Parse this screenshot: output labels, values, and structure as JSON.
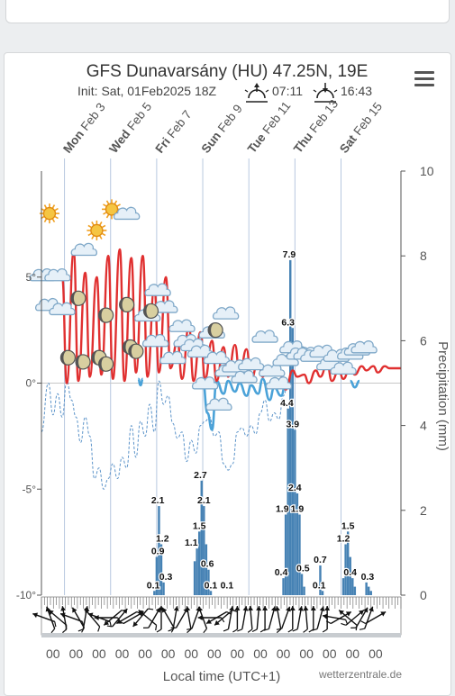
{
  "chart_data": {
    "type": "line+bar",
    "title": "GFS Dunavarsány (HU) 47.25N, 19E",
    "init": "Init: Sat, 01Feb2025 18Z",
    "sunrise": "07:11",
    "sunset": "16:43",
    "left_axis": {
      "ticks": [
        "5°",
        "0°",
        "-5°",
        "-10°"
      ],
      "values": [
        5,
        0,
        -5,
        -10
      ],
      "ylim": [
        -10,
        10
      ]
    },
    "right_axis": {
      "label": "Precipitation (mm)",
      "ticks": [
        "10",
        "8",
        "6",
        "4",
        "2",
        "0"
      ],
      "values": [
        10,
        8,
        6,
        4,
        2,
        0
      ],
      "ylim": [
        0,
        10
      ]
    },
    "day_labels": [
      {
        "day": "Mon",
        "date": "Feb 3",
        "x": 2.5
      },
      {
        "day": "Wed",
        "date": "Feb 5",
        "x": 4.5
      },
      {
        "day": "Fri",
        "date": "Feb 7",
        "x": 6.5
      },
      {
        "day": "Sun",
        "date": "Feb 9",
        "x": 8.5
      },
      {
        "day": "Tue",
        "date": "Feb 11",
        "x": 10.5
      },
      {
        "day": "Thu",
        "date": "Feb 13",
        "x": 12.5
      },
      {
        "day": "Sat",
        "date": "Feb 15",
        "x": 14.5
      }
    ],
    "x_range": [
      1.5,
      17.1
    ],
    "hour_label": "00",
    "hour_positions": [
      2,
      3,
      4,
      5,
      6,
      7,
      8,
      9,
      10,
      11,
      12,
      13,
      14,
      15,
      16
    ],
    "xlabel": "Local time (UTC+1)",
    "credit": "wetterzentrale.de",
    "series": [
      {
        "kind": "temperature_max_line",
        "color": "#e03030",
        "x": [
          1.5,
          1.9,
          2.1,
          2.4,
          2.6,
          2.9,
          3.1,
          3.4,
          3.6,
          3.9,
          4.1,
          4.4,
          4.6,
          4.9,
          5.1,
          5.4,
          5.6,
          5.9,
          6.1,
          6.4,
          6.6,
          6.9,
          7.1,
          7.4,
          7.6,
          7.9,
          8.1,
          8.4,
          8.6,
          8.9,
          9.1,
          9.4,
          9.6,
          9.9,
          10.1,
          10.4,
          10.6,
          10.9,
          11.1,
          11.3,
          11.5,
          11.8,
          12.1,
          12.4,
          12.6,
          12.9,
          13.1,
          13.4,
          13.6,
          13.9,
          14.1,
          14.4,
          14.6,
          14.9,
          15.1,
          15.4,
          15.6,
          15.9,
          16.1,
          16.4,
          16.6,
          17.1
        ],
        "y": [
          5,
          5,
          5,
          5,
          0,
          6.2,
          0.1,
          5.2,
          0.3,
          5,
          0.4,
          6,
          0.2,
          6.3,
          0.1,
          5.9,
          0.5,
          6,
          0.3,
          4.5,
          0.5,
          5,
          0.7,
          2,
          0.2,
          2.7,
          0.1,
          2.4,
          0.2,
          2,
          0.1,
          1.7,
          0.3,
          1.8,
          0.4,
          1.6,
          0.2,
          1,
          0.3,
          0.8,
          0.5,
          0.6,
          -0.3,
          0.6,
          0.3,
          0.4,
          0,
          0.6,
          0.3,
          0.9,
          0.1,
          0.6,
          0.2,
          0.8,
          0.4,
          0.8,
          0.6,
          0.8,
          0.5,
          0.8,
          0.7,
          0.7
        ]
      },
      {
        "kind": "temperature_min_line",
        "color": "#4aa2d8",
        "x": [
          5.7,
          5.8,
          5.9,
          8.5,
          8.7,
          8.9,
          9.1,
          9.4,
          9.6,
          9.9,
          10.1,
          10.4,
          10.6,
          10.9,
          11.1,
          11.4,
          11.6,
          11.9,
          12.1,
          14.9,
          15.1,
          15.3
        ],
        "y": [
          0.2,
          -0.1,
          0.2,
          0.2,
          -1.4,
          -2.2,
          0.1,
          -0.5,
          0.1,
          -0.4,
          0,
          -0.6,
          -0.1,
          -0.5,
          0.2,
          -0.8,
          -0.2,
          -0.6,
          0,
          0.1,
          -0.2,
          0.1
        ]
      },
      {
        "kind": "dewpoint_dashed_line",
        "color": "#5b93c9",
        "x": [
          1.5,
          1.8,
          2.0,
          2.2,
          2.4,
          2.6,
          2.8,
          3.0,
          3.2,
          3.4,
          3.6,
          3.8,
          4.0,
          4.2,
          4.4,
          4.6,
          4.8,
          5.0,
          5.2,
          5.4,
          5.6,
          5.8,
          6.0,
          6.2,
          6.4,
          6.6,
          6.8,
          7.0,
          7.2,
          7.4,
          7.6,
          7.8,
          8.0,
          8.2,
          8.4,
          8.6,
          8.8,
          9.0,
          9.2,
          9.4,
          9.6,
          9.8,
          10.0,
          10.2,
          10.4,
          10.6,
          10.8,
          11.0,
          11.2,
          11.4,
          11.6,
          11.8,
          12.0,
          12.2
        ],
        "y": [
          -2.3,
          0,
          -1.5,
          -0.5,
          -1.6,
          0.1,
          -0.8,
          -1.6,
          -2.8,
          -1.6,
          -2.5,
          -4.5,
          -4,
          -5,
          -4.5,
          -3.8,
          -4.5,
          -3.5,
          -4,
          -2,
          -3.5,
          -1.8,
          -2.5,
          -1,
          -2.3,
          0.1,
          -1,
          -0.6,
          -1.9,
          -2.6,
          -2.3,
          -3.7,
          -2.7,
          -3.3,
          -2,
          -1.8,
          -1.6,
          -2.5,
          -2.3,
          -3.8,
          -4.1,
          -3.8,
          -2.3,
          -2.1,
          -2.5,
          -2,
          -2.4,
          -1.4,
          -0.8,
          -1.8,
          -1.4,
          -1.7,
          -0.6,
          0
        ]
      },
      {
        "kind": "precipitation_bars",
        "color": "#4682b4",
        "x": [
          6.4,
          6.5,
          6.6,
          6.7,
          6.8,
          8.15,
          8.25,
          8.35,
          8.45,
          8.55,
          8.65,
          8.75,
          8.85,
          12.0,
          12.1,
          12.2,
          12.3,
          12.4,
          12.5,
          12.6,
          12.7,
          12.8,
          12.9,
          13.6,
          13.7,
          14.6,
          14.7,
          14.8,
          14.9,
          15.0,
          15.1,
          15.6,
          15.7,
          15.8
        ],
        "values": [
          0.1,
          0.9,
          2.1,
          1.2,
          0.3,
          0.8,
          1.1,
          1.5,
          2.7,
          2.1,
          1.2,
          0.6,
          0.1,
          0.4,
          1.9,
          4.4,
          7.9,
          6.3,
          3.9,
          2.4,
          1.9,
          0.5,
          0.2,
          0.7,
          0.1,
          0.4,
          1.2,
          1.5,
          0.9,
          0.4,
          0.2,
          0.3,
          0.2,
          0.1
        ]
      }
    ],
    "precip_labels": [
      {
        "text": "0.1",
        "x": 6.35,
        "v": 0.1
      },
      {
        "text": "0.9",
        "x": 6.55,
        "v": 0.9
      },
      {
        "text": "2.1",
        "x": 6.55,
        "v": 2.1
      },
      {
        "text": "1.2",
        "x": 6.75,
        "v": 1.2
      },
      {
        "text": "0.3",
        "x": 6.9,
        "v": 0.3
      },
      {
        "text": "1.1",
        "x": 8.0,
        "v": 1.1
      },
      {
        "text": "1.5",
        "x": 8.35,
        "v": 1.5
      },
      {
        "text": "2.7",
        "x": 8.4,
        "v": 2.7
      },
      {
        "text": "2.1",
        "x": 8.55,
        "v": 2.1
      },
      {
        "text": "0.6",
        "x": 8.7,
        "v": 0.6
      },
      {
        "text": "0.1",
        "x": 8.85,
        "v": 0.1
      },
      {
        "text": "0.1",
        "x": 9.55,
        "v": 0.1
      },
      {
        "text": "0.4",
        "x": 11.9,
        "v": 0.4
      },
      {
        "text": "1.9",
        "x": 11.95,
        "v": 1.9
      },
      {
        "text": "4.4",
        "x": 12.15,
        "v": 4.4
      },
      {
        "text": "7.9",
        "x": 12.25,
        "v": 7.9
      },
      {
        "text": "6.3",
        "x": 12.2,
        "v": 6.3
      },
      {
        "text": "3.9",
        "x": 12.4,
        "v": 3.9
      },
      {
        "text": "2.4",
        "x": 12.5,
        "v": 2.4
      },
      {
        "text": "1.9",
        "x": 12.6,
        "v": 1.9
      },
      {
        "text": "0.5",
        "x": 12.85,
        "v": 0.5
      },
      {
        "text": "0.7",
        "x": 13.6,
        "v": 0.7
      },
      {
        "text": "0.1",
        "x": 13.55,
        "v": 0.1
      },
      {
        "text": "1.2",
        "x": 14.6,
        "v": 1.2
      },
      {
        "text": "1.5",
        "x": 14.8,
        "v": 1.5
      },
      {
        "text": "0.4",
        "x": 14.9,
        "v": 0.4
      },
      {
        "text": "0.3",
        "x": 15.65,
        "v": 0.3
      }
    ],
    "weather_icons": [
      {
        "type": "sun",
        "x": 1.85,
        "t": 8.0
      },
      {
        "type": "sun",
        "x": 3.9,
        "t": 7.2
      },
      {
        "type": "sun",
        "x": 4.55,
        "t": 8.2
      },
      {
        "type": "cloud",
        "x": 1.55,
        "t": 5.0
      },
      {
        "type": "cloud",
        "x": 2.2,
        "t": 5.0
      },
      {
        "type": "cloud",
        "x": 1.8,
        "t": 3.6
      },
      {
        "type": "cloud",
        "x": 2.4,
        "t": 3.4
      },
      {
        "type": "cloud",
        "x": 3.35,
        "t": 6.2
      },
      {
        "type": "cloud",
        "x": 5.2,
        "t": 7.9
      },
      {
        "type": "cloud",
        "x": 6.1,
        "t": 3.1
      },
      {
        "type": "cloud",
        "x": 6.55,
        "t": 4.3
      },
      {
        "type": "cloud",
        "x": 6.85,
        "t": 3.5
      },
      {
        "type": "cloud",
        "x": 6.45,
        "t": 1.9
      },
      {
        "type": "cloud",
        "x": 7.2,
        "t": 1.1
      },
      {
        "type": "cloud",
        "x": 7.6,
        "t": 2.6
      },
      {
        "type": "cloud",
        "x": 7.8,
        "t": 1.9
      },
      {
        "type": "cloud",
        "x": 8.1,
        "t": 1.7
      },
      {
        "type": "cloud",
        "x": 8.4,
        "t": 1.4
      },
      {
        "type": "cloud",
        "x": 8.9,
        "t": 2.3
      },
      {
        "type": "cloud",
        "x": 9.1,
        "t": 1.1
      },
      {
        "type": "cloud",
        "x": 9.5,
        "t": 3.2
      },
      {
        "type": "cloud",
        "x": 8.6,
        "t": -0.1
      },
      {
        "type": "cloud",
        "x": 9.6,
        "t": 0.5
      },
      {
        "type": "cloud",
        "x": 9.9,
        "t": 0.7
      },
      {
        "type": "cloud",
        "x": 10.3,
        "t": 0.2
      },
      {
        "type": "cloud",
        "x": 10.6,
        "t": 0.8
      },
      {
        "type": "cloud",
        "x": 9.2,
        "t": -1.1
      },
      {
        "type": "cloud",
        "x": 11.2,
        "t": 2.1
      },
      {
        "type": "cloud",
        "x": 11.5,
        "t": 0.5
      },
      {
        "type": "cloud",
        "x": 11.8,
        "t": -0.1
      },
      {
        "type": "cloud",
        "x": 12.1,
        "t": 1.0
      },
      {
        "type": "cloud",
        "x": 12.4,
        "t": 1.6
      },
      {
        "type": "cloud",
        "x": 12.7,
        "t": 1.3
      },
      {
        "type": "cloud",
        "x": 13.0,
        "t": 1.3
      },
      {
        "type": "cloud",
        "x": 13.3,
        "t": 1.2
      },
      {
        "type": "cloud",
        "x": 13.7,
        "t": 1.4
      },
      {
        "type": "cloud",
        "x": 14.0,
        "t": 0.8
      },
      {
        "type": "cloud",
        "x": 14.3,
        "t": 1.2
      },
      {
        "type": "cloud",
        "x": 14.6,
        "t": 0.6
      },
      {
        "type": "cloud",
        "x": 14.9,
        "t": 1.3
      },
      {
        "type": "cloud",
        "x": 15.2,
        "t": 1.5
      },
      {
        "type": "cloud",
        "x": 15.5,
        "t": 1.6
      },
      {
        "type": "moon",
        "x": 3.1,
        "t": 4.0
      },
      {
        "type": "moon",
        "x": 2.65,
        "t": 1.2
      },
      {
        "type": "moon",
        "x": 3.3,
        "t": 1.0
      },
      {
        "type": "moon",
        "x": 4.3,
        "t": 3.2
      },
      {
        "type": "moon",
        "x": 4.0,
        "t": 1.2
      },
      {
        "type": "moon",
        "x": 4.3,
        "t": 0.9
      },
      {
        "type": "moon",
        "x": 5.2,
        "t": 3.7
      },
      {
        "type": "moon",
        "x": 5.35,
        "t": 1.7
      },
      {
        "type": "moon",
        "x": 5.6,
        "t": 1.5
      },
      {
        "type": "moon",
        "x": 6.25,
        "t": 3.4
      },
      {
        "type": "moon",
        "x": 9.05,
        "t": 2.5
      }
    ],
    "wind_arrows": [
      {
        "x": 1.6,
        "angle": 200
      },
      {
        "x": 1.9,
        "angle": 250
      },
      {
        "x": 2.2,
        "angle": 220
      },
      {
        "x": 2.5,
        "angle": 260
      },
      {
        "x": 2.8,
        "angle": 200
      },
      {
        "x": 3.1,
        "angle": 240
      },
      {
        "x": 3.4,
        "angle": 280
      },
      {
        "x": 3.7,
        "angle": 230
      },
      {
        "x": 4.0,
        "angle": 200
      },
      {
        "x": 4.3,
        "angle": 180
      },
      {
        "x": 4.6,
        "angle": 140
      },
      {
        "x": 4.9,
        "angle": 310
      },
      {
        "x": 5.2,
        "angle": 150
      },
      {
        "x": 5.5,
        "angle": 330
      },
      {
        "x": 5.8,
        "angle": 130
      },
      {
        "x": 6.1,
        "angle": 220
      },
      {
        "x": 6.4,
        "angle": 300
      },
      {
        "x": 6.7,
        "angle": 270
      },
      {
        "x": 7.0,
        "angle": 240
      },
      {
        "x": 7.3,
        "angle": 280
      },
      {
        "x": 7.6,
        "angle": 300
      },
      {
        "x": 7.9,
        "angle": 260
      },
      {
        "x": 8.2,
        "angle": 290
      },
      {
        "x": 8.5,
        "angle": 250
      },
      {
        "x": 8.8,
        "angle": 180
      },
      {
        "x": 9.1,
        "angle": 150
      },
      {
        "x": 9.4,
        "angle": 140
      },
      {
        "x": 9.7,
        "angle": 280
      },
      {
        "x": 10.0,
        "angle": 270
      },
      {
        "x": 10.3,
        "angle": 280
      },
      {
        "x": 10.6,
        "angle": 265
      },
      {
        "x": 10.9,
        "angle": 275
      },
      {
        "x": 11.2,
        "angle": 270
      },
      {
        "x": 11.5,
        "angle": 285
      },
      {
        "x": 11.8,
        "angle": 260
      },
      {
        "x": 12.1,
        "angle": 290
      },
      {
        "x": 12.4,
        "angle": 270
      },
      {
        "x": 12.7,
        "angle": 280
      },
      {
        "x": 13.0,
        "angle": 265
      },
      {
        "x": 13.3,
        "angle": 270
      },
      {
        "x": 13.6,
        "angle": 285
      },
      {
        "x": 13.9,
        "angle": 270
      },
      {
        "x": 14.2,
        "angle": 190
      },
      {
        "x": 14.5,
        "angle": 330
      },
      {
        "x": 14.8,
        "angle": 220
      },
      {
        "x": 15.1,
        "angle": 320
      },
      {
        "x": 15.4,
        "angle": 300
      },
      {
        "x": 15.7,
        "angle": 290
      },
      {
        "x": 16.0,
        "angle": 330
      }
    ],
    "grid": true
  }
}
